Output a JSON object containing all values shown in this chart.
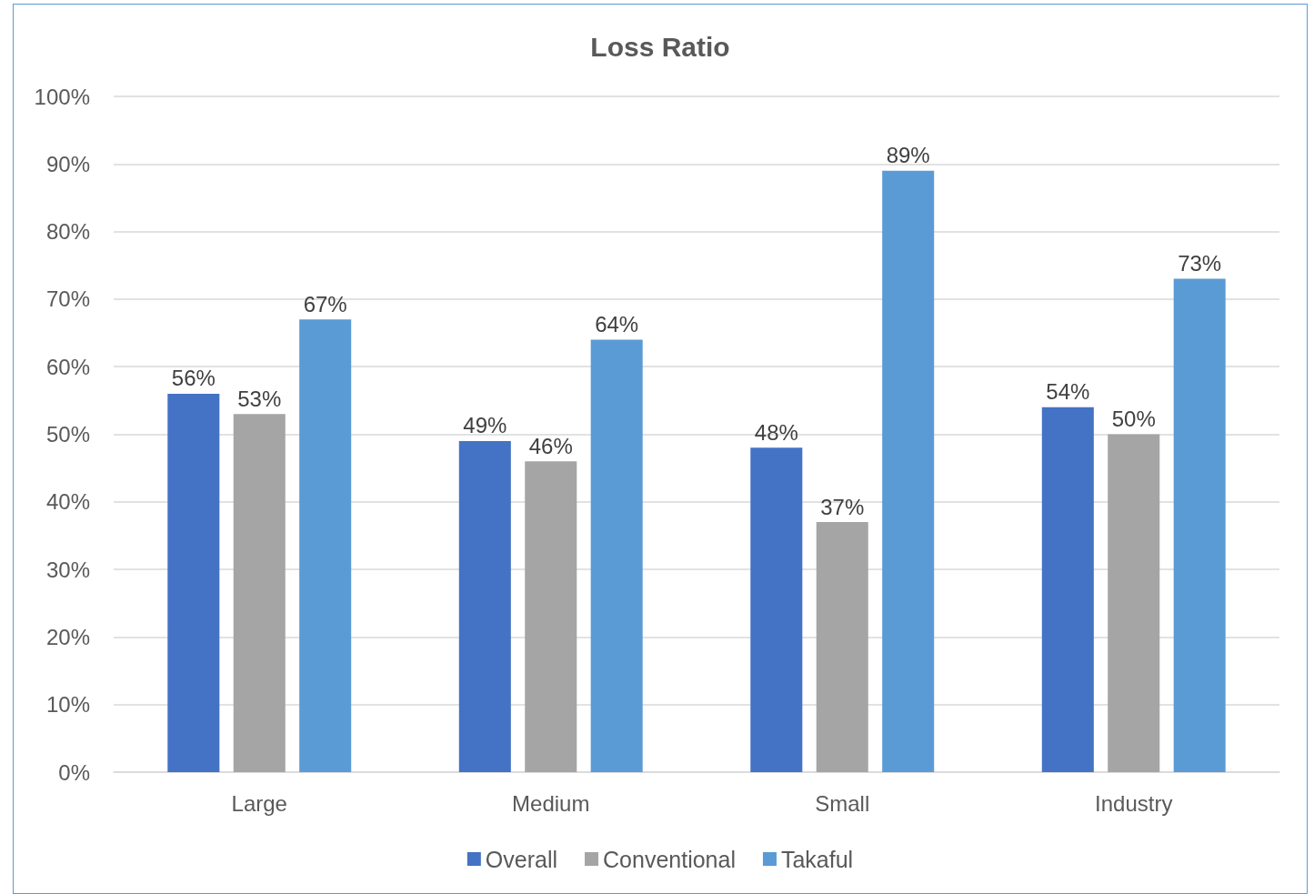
{
  "chart_data": {
    "type": "bar",
    "title": "Loss Ratio",
    "categories": [
      "Large",
      "Medium",
      "Small",
      "Industry"
    ],
    "series": [
      {
        "name": "Overall",
        "color": "#4472c4",
        "values": [
          56,
          49,
          48,
          54
        ],
        "value_labels": [
          "56%",
          "49%",
          "48%",
          "54%"
        ]
      },
      {
        "name": "Conventional",
        "color": "#a5a5a5",
        "values": [
          53,
          46,
          37,
          50
        ],
        "value_labels": [
          "53%",
          "46%",
          "37%",
          "50%"
        ]
      },
      {
        "name": "Takaful",
        "color": "#5b9bd5",
        "values": [
          67,
          64,
          89,
          73
        ],
        "value_labels": [
          "67%",
          "64%",
          "89%",
          "73%"
        ]
      }
    ],
    "ylim": [
      0,
      100
    ],
    "yticks": [
      {
        "value": 0,
        "label": "0%"
      },
      {
        "value": 10,
        "label": "10%"
      },
      {
        "value": 20,
        "label": "20%"
      },
      {
        "value": 30,
        "label": "30%"
      },
      {
        "value": 40,
        "label": "40%"
      },
      {
        "value": 50,
        "label": "50%"
      },
      {
        "value": 60,
        "label": "60%"
      },
      {
        "value": 70,
        "label": "70%"
      },
      {
        "value": 80,
        "label": "80%"
      },
      {
        "value": 90,
        "label": "90%"
      },
      {
        "value": 100,
        "label": "100%"
      }
    ],
    "grid": "y",
    "legend": "bottom"
  }
}
